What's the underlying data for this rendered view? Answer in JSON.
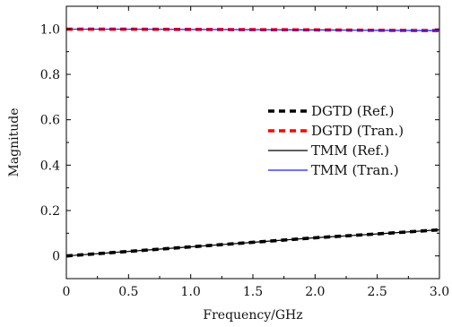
{
  "chart_data": {
    "type": "line",
    "xlabel": "Frequency/GHz",
    "ylabel": "Magnitude",
    "xlim": [
      0,
      3.0
    ],
    "ylim": [
      -0.1,
      1.1
    ],
    "x_ticks": [
      0,
      0.5,
      1.0,
      1.5,
      2.0,
      2.5,
      3.0
    ],
    "x_tick_labels": [
      "0",
      "0.5",
      "1.0",
      "1.5",
      "2.0",
      "2.5",
      "3.0"
    ],
    "y_ticks": [
      0,
      0.2,
      0.4,
      0.6,
      0.8,
      1.0
    ],
    "y_tick_labels": [
      "0",
      "0.2",
      "0.4",
      "0.6",
      "0.8",
      "1.0"
    ],
    "grid": false,
    "legend_position": "center-right",
    "x": [
      0,
      0.5,
      1.0,
      1.5,
      2.0,
      2.5,
      3.0
    ],
    "series": [
      {
        "name": "DGTD (Ref.)",
        "values": [
          0.0,
          0.02,
          0.04,
          0.06,
          0.08,
          0.097,
          0.115
        ],
        "color": "#000000",
        "style": "dashed"
      },
      {
        "name": "DGTD (Tran.)",
        "values": [
          0.999,
          0.999,
          0.998,
          0.997,
          0.996,
          0.994,
          0.993
        ],
        "color": "#ff0000",
        "style": "dashed"
      },
      {
        "name": "TMM (Ref.)",
        "values": [
          0.0,
          0.02,
          0.04,
          0.06,
          0.08,
          0.097,
          0.115
        ],
        "color": "#000000",
        "style": "solid"
      },
      {
        "name": "TMM (Tran.)",
        "values": [
          0.999,
          0.999,
          0.998,
          0.997,
          0.996,
          0.994,
          0.993
        ],
        "color": "#1a1aff",
        "style": "solid"
      }
    ]
  }
}
